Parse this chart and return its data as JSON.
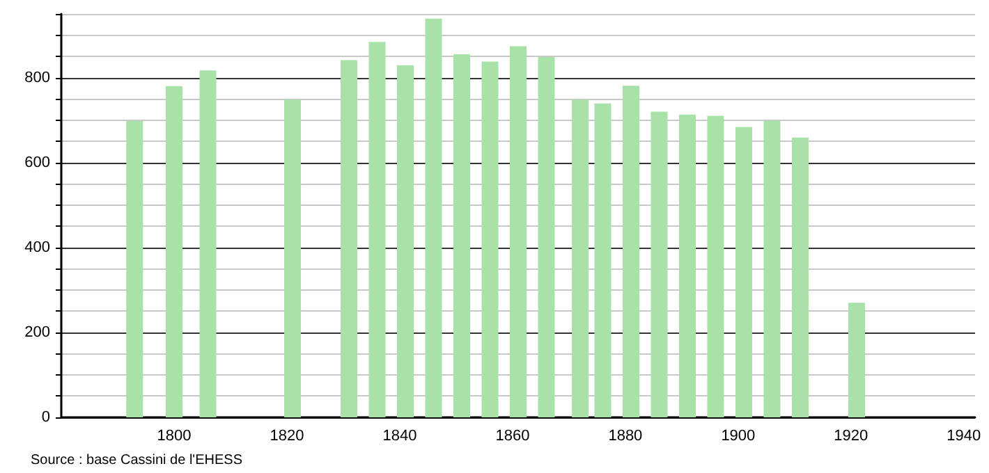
{
  "chart_data": {
    "type": "bar",
    "x": [
      1793,
      1800,
      1806,
      1821,
      1831,
      1836,
      1841,
      1846,
      1851,
      1856,
      1861,
      1866,
      1872,
      1876,
      1881,
      1886,
      1891,
      1896,
      1901,
      1906,
      1911,
      1921
    ],
    "values": [
      698,
      780,
      817,
      748,
      841,
      884,
      829,
      939,
      855,
      838,
      874,
      849,
      748,
      739,
      781,
      720,
      713,
      710,
      684,
      698,
      659,
      270
    ],
    "color": "#a8e2a8",
    "xlim": [
      1780,
      1942
    ],
    "xticks": [
      1800,
      1820,
      1840,
      1860,
      1880,
      1900,
      1920,
      1940
    ],
    "ylim": [
      0,
      950
    ],
    "yticks": [
      0,
      {
        "value": 50,
        "label": null
      },
      {
        "value": 100,
        "label": null
      },
      {
        "value": 150,
        "label": null
      },
      200,
      {
        "value": 250,
        "label": null
      },
      {
        "value": 300,
        "label": null
      },
      {
        "value": 350,
        "label": null
      },
      400,
      {
        "value": 450,
        "label": null
      },
      {
        "value": 500,
        "label": null
      },
      {
        "value": 550,
        "label": null
      },
      600,
      {
        "value": 650,
        "label": null
      },
      {
        "value": 700,
        "label": null
      },
      {
        "value": 750,
        "label": null
      },
      800,
      {
        "value": 850,
        "label": null
      },
      {
        "value": 900,
        "label": null
      },
      {
        "value": 950,
        "label": null
      }
    ],
    "grid": "y",
    "annotations": [
      "Source : base Cassini de l'EHESS"
    ]
  }
}
